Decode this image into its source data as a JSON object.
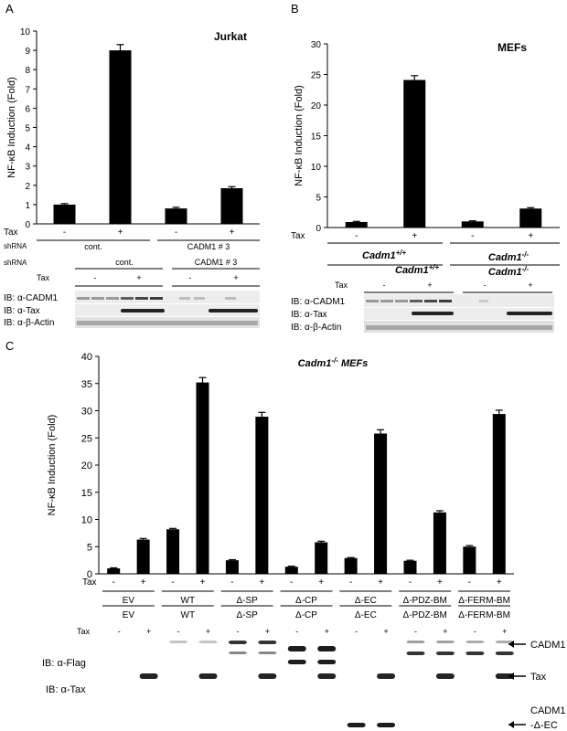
{
  "chart_data": [
    {
      "panel": "A",
      "type": "bar",
      "title": "Jurkat",
      "ylabel": "NF-κB Induction (Fold)",
      "ylim": [
        0,
        10
      ],
      "yticks": [
        "0",
        "1",
        "2",
        "3",
        "4",
        "5",
        "6",
        "7",
        "8",
        "9",
        "10"
      ],
      "tax_label": "Tax",
      "tax_signs": [
        "-",
        "+",
        "-",
        "+"
      ],
      "values": [
        1.0,
        9.0,
        0.8,
        1.85
      ],
      "errors": [
        0.05,
        0.3,
        0.06,
        0.08
      ],
      "groups_label": "shRNA",
      "groups": [
        "cont.",
        "CADM1 # 3"
      ],
      "blot": {
        "group_label": "shRNA",
        "groups": [
          "cont.",
          "CADM1 # 3"
        ],
        "tax_label": "Tax",
        "tax_signs": [
          "-",
          "+",
          "-",
          "+"
        ],
        "bands": [
          "IB: α-CADM1",
          "IB: α-Tax",
          "IB: α-β-Actin"
        ]
      }
    },
    {
      "panel": "B",
      "type": "bar",
      "title": "MEFs",
      "ylabel": "NF-κB Induction (Fold)",
      "ylim": [
        0,
        30
      ],
      "yticks": [
        "0",
        "5",
        "10",
        "15",
        "20",
        "25",
        "30"
      ],
      "tax_label": "Tax",
      "tax_signs": [
        "-",
        "+",
        "-",
        "+"
      ],
      "values": [
        0.9,
        24.1,
        1.0,
        3.1
      ],
      "errors": [
        0.1,
        0.7,
        0.1,
        0.15
      ],
      "groups": [
        "Cadm1",
        "Cadm1"
      ],
      "group_sups": [
        "+/+",
        "-/-"
      ],
      "blot": {
        "groups": [
          "Cadm1",
          "Cadm1"
        ],
        "group_sups": [
          "+/+",
          "-/-"
        ],
        "tax_label": "Tax",
        "tax_signs": [
          "-",
          "+",
          "-",
          "+"
        ],
        "bands": [
          "IB: α-CADM1",
          "IB: α-Tax",
          "IB: α-β-Actin"
        ]
      }
    },
    {
      "panel": "C",
      "type": "bar",
      "title": "Cadm1",
      "title_sup": "-/-",
      "title_suffix": " MEFs",
      "ylabel": "NF-κB Induction (Fold)",
      "ylim": [
        0,
        40
      ],
      "yticks": [
        "0",
        "5",
        "10",
        "15",
        "20",
        "25",
        "30",
        "35",
        "40"
      ],
      "tax_label": "Tax",
      "tax_signs": [
        "-",
        "+",
        "-",
        "+",
        "-",
        "+",
        "-",
        "+",
        "-",
        "+",
        "-",
        "+",
        "-",
        "+"
      ],
      "values": [
        1.0,
        6.3,
        8.2,
        35.2,
        2.5,
        28.9,
        1.3,
        5.8,
        2.9,
        25.8,
        2.4,
        11.3,
        5.0,
        29.4
      ],
      "errors": [
        0.1,
        0.2,
        0.15,
        0.9,
        0.1,
        0.8,
        0.1,
        0.2,
        0.1,
        0.7,
        0.1,
        0.3,
        0.2,
        0.7
      ],
      "groups": [
        "EV",
        "WT",
        "Δ-SP",
        "Δ-CP",
        "Δ-EC",
        "Δ-PDZ-BM",
        "Δ-FERM-BM"
      ],
      "blot": {
        "groups": [
          "EV",
          "WT",
          "Δ-SP",
          "Δ-CP",
          "Δ-EC",
          "Δ-PDZ-BM",
          "Δ-FERM-BM"
        ],
        "tax_label": "Tax",
        "tax_signs": [
          "-",
          "+",
          "-",
          "+",
          "-",
          "+",
          "-",
          "+",
          "-",
          "+",
          "-",
          "+",
          "-",
          "+"
        ],
        "bands": [
          "IB: α-Flag",
          "IB: α-Tax"
        ],
        "arrows": [
          "CADM1",
          "Tax",
          "CADM1",
          "-Δ-EC"
        ]
      }
    }
  ],
  "panel_letters": [
    "A",
    "B",
    "C"
  ]
}
